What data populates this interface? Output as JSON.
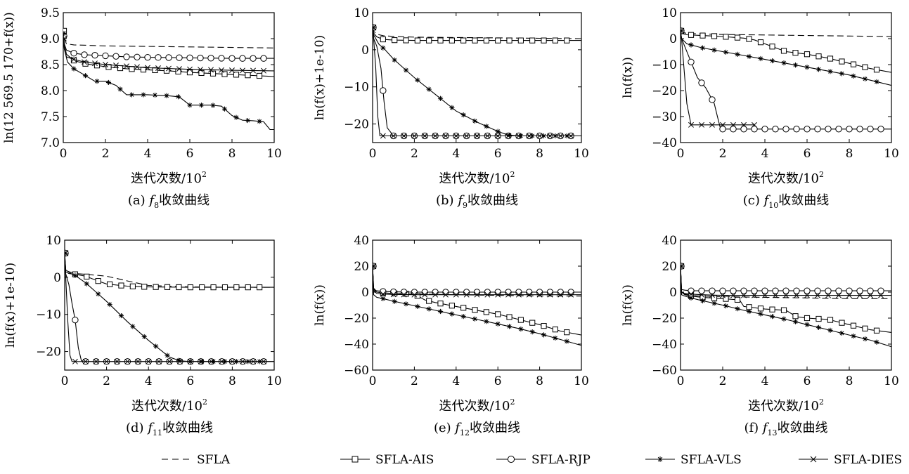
{
  "chart_data": [
    {
      "type": "line",
      "panel": "a",
      "caption_prefix": "(a)",
      "fn_base": "f",
      "fn_sub": "8",
      "caption_suffix": "收敛曲线",
      "xlabel": "迭代次数/10",
      "xlabel_sup": "2",
      "ylabel": "ln(12 569.5 170+f(x))",
      "xlim": [
        0,
        10
      ],
      "ylim": [
        7.0,
        9.5
      ],
      "xticks": [
        "0",
        "2",
        "4",
        "6",
        "8",
        "10"
      ],
      "yticks": [
        "7.0",
        "7.5",
        "8.0",
        "8.5",
        "9.0",
        "9.5"
      ],
      "series": [
        {
          "name": "SFLA",
          "x": [
            0,
            0.05,
            0.15,
            0.5,
            2,
            6,
            10
          ],
          "y": [
            9.2,
            9.0,
            8.9,
            8.88,
            8.86,
            8.84,
            8.82
          ]
        },
        {
          "name": "SFLA-AIS",
          "x": [
            0,
            0.05,
            0.15,
            0.5,
            1,
            2,
            3,
            4,
            5,
            6,
            7,
            8,
            9,
            10
          ],
          "y": [
            9.15,
            8.9,
            8.7,
            8.58,
            8.52,
            8.46,
            8.42,
            8.4,
            8.38,
            8.35,
            8.33,
            8.31,
            8.29,
            8.27
          ]
        },
        {
          "name": "SFLA-RJP",
          "x": [
            0,
            0.05,
            0.15,
            0.5,
            1,
            2,
            3,
            4,
            6,
            8,
            10
          ],
          "y": [
            9.05,
            8.9,
            8.78,
            8.72,
            8.69,
            8.67,
            8.65,
            8.64,
            8.63,
            8.62,
            8.62
          ]
        },
        {
          "name": "SFLA-VLS",
          "x": [
            0,
            0.05,
            0.2,
            0.5,
            1,
            1.5,
            2,
            2.5,
            3,
            4,
            5,
            5.5,
            6,
            7,
            7.5,
            8,
            8.5,
            9,
            9.5,
            9.8,
            10
          ],
          "y": [
            9.1,
            8.8,
            8.55,
            8.42,
            8.3,
            8.18,
            8.18,
            8.1,
            7.92,
            7.92,
            7.9,
            7.88,
            7.72,
            7.72,
            7.7,
            7.52,
            7.43,
            7.42,
            7.4,
            7.25,
            7.25
          ]
        },
        {
          "name": "SFLA-DIES",
          "x": [
            0,
            0.05,
            0.15,
            0.5,
            1,
            2,
            3,
            4,
            6,
            8,
            10
          ],
          "y": [
            9.0,
            8.8,
            8.65,
            8.6,
            8.55,
            8.5,
            8.47,
            8.44,
            8.41,
            8.39,
            8.38
          ]
        }
      ]
    },
    {
      "type": "line",
      "panel": "b",
      "caption_prefix": "(b)",
      "fn_base": "f",
      "fn_sub": "9",
      "caption_suffix": "收敛曲线",
      "xlabel": "迭代次数/10",
      "xlabel_sup": "2",
      "ylabel": "ln(f(x)+1e-10)",
      "xlim": [
        0,
        10
      ],
      "ylim": [
        -25,
        10
      ],
      "xticks": [
        "0",
        "2",
        "4",
        "6",
        "8",
        "10"
      ],
      "yticks": [
        "−20",
        "−10",
        "0",
        "10"
      ],
      "ytick_values": [
        -20,
        -10,
        0,
        10
      ],
      "series": [
        {
          "name": "SFLA",
          "x": [
            0,
            0.05,
            0.2,
            0.5,
            1,
            2,
            4,
            6,
            8,
            10
          ],
          "y": [
            6,
            5,
            4.2,
            3.8,
            3.6,
            3.4,
            3.3,
            3.2,
            3.1,
            3.0
          ]
        },
        {
          "name": "SFLA-AIS",
          "x": [
            0,
            0.05,
            0.2,
            0.5,
            1,
            2,
            4,
            6,
            8,
            10
          ],
          "y": [
            6,
            4.5,
            3.5,
            2.8,
            2.6,
            2.5,
            2.5,
            2.5,
            2.5,
            2.5
          ]
        },
        {
          "name": "SFLA-RJP",
          "x": [
            0,
            0.05,
            0.2,
            0.4,
            0.55,
            0.7,
            1,
            2,
            4,
            6,
            8,
            10
          ],
          "y": [
            6,
            3,
            1,
            -5,
            -14,
            -21,
            -23.2,
            -23.2,
            -23.2,
            -23.2,
            -23.2,
            -23.2
          ]
        },
        {
          "name": "SFLA-VLS",
          "x": [
            0,
            0.05,
            0.3,
            0.6,
            1,
            2,
            3,
            4,
            5,
            6,
            6.5,
            7,
            10
          ],
          "y": [
            6,
            4,
            1.5,
            0,
            -2.5,
            -7.5,
            -12,
            -16.5,
            -19.5,
            -22,
            -23,
            -23.2,
            -23.2
          ]
        },
        {
          "name": "SFLA-DIES",
          "x": [
            0,
            0.05,
            0.15,
            0.25,
            0.35,
            0.6,
            1,
            10
          ],
          "y": [
            6,
            3,
            -5,
            -18,
            -23.2,
            -23.2,
            -23.2,
            -23.2
          ]
        }
      ]
    },
    {
      "type": "line",
      "panel": "c",
      "caption_prefix": "(c)",
      "fn_base": "f",
      "fn_sub": "10",
      "caption_suffix": "收敛曲线",
      "xlabel": "迭代次数/10",
      "xlabel_sup": "2",
      "ylabel": "ln(f(x))",
      "xlim": [
        0,
        10
      ],
      "ylim": [
        -40,
        10
      ],
      "xticks": [
        "0",
        "2",
        "4",
        "6",
        "8",
        "10"
      ],
      "yticks": [
        "−40",
        "−30",
        "−20",
        "−10",
        "0",
        "10"
      ],
      "ytick_values": [
        -40,
        -30,
        -20,
        -10,
        0,
        10
      ],
      "series": [
        {
          "name": "SFLA",
          "x": [
            0,
            0.05,
            0.3,
            1,
            2,
            4,
            6,
            8,
            10
          ],
          "y": [
            3,
            2.5,
            2,
            1.8,
            1.6,
            1.4,
            1.2,
            1.0,
            0.8
          ]
        },
        {
          "name": "SFLA-AIS",
          "x": [
            0,
            0.05,
            0.3,
            1,
            2,
            3,
            3.5,
            4,
            4.5,
            5,
            6,
            7,
            8,
            9,
            10
          ],
          "y": [
            3,
            2,
            1.5,
            1.2,
            0.8,
            0.2,
            -0.5,
            -2,
            -3.5,
            -5,
            -6,
            -7.5,
            -9.5,
            -11.5,
            -13
          ]
        },
        {
          "name": "SFLA-RJP",
          "x": [
            0,
            0.05,
            0.2,
            0.4,
            0.6,
            0.8,
            1,
            1.2,
            1.4,
            1.6,
            1.75,
            1.9,
            2.5,
            4,
            6,
            8,
            10
          ],
          "y": [
            3,
            0,
            -3,
            -7,
            -11,
            -15,
            -17,
            -19,
            -22,
            -25,
            -30,
            -34.8,
            -34.8,
            -34.8,
            -34.8,
            -34.8,
            -34.8
          ]
        },
        {
          "name": "SFLA-VLS",
          "x": [
            0,
            0.05,
            0.3,
            1,
            2,
            3,
            4,
            5,
            6,
            7,
            8,
            9,
            10
          ],
          "y": [
            3,
            0,
            -2,
            -3.5,
            -5,
            -6.5,
            -8,
            -9.5,
            -11,
            -12.5,
            -14,
            -16,
            -18
          ]
        },
        {
          "name": "SFLA-DIES",
          "x": [
            0,
            0.05,
            0.15,
            0.3,
            0.5,
            1,
            2,
            3,
            3.5
          ],
          "y": [
            3,
            0,
            -10,
            -25,
            -33.2,
            -33.2,
            -33.2,
            -33.2,
            -33.2
          ]
        }
      ]
    },
    {
      "type": "line",
      "panel": "d",
      "caption_prefix": "(d)",
      "fn_base": "f",
      "fn_sub": "11",
      "caption_suffix": "收敛曲线",
      "xlabel": "迭代次数/10",
      "xlabel_sup": "2",
      "ylabel": "ln(f(x)+1e-10)",
      "xlim": [
        0,
        10
      ],
      "ylim": [
        -25,
        10
      ],
      "xticks": [
        "0",
        "2",
        "4",
        "6",
        "8",
        "10"
      ],
      "yticks": [
        "−20",
        "−10",
        "0",
        "10"
      ],
      "ytick_values": [
        -20,
        -10,
        0,
        10
      ],
      "series": [
        {
          "name": "SFLA",
          "x": [
            0,
            0.05,
            0.2,
            0.5,
            1,
            2,
            3,
            4,
            6,
            8,
            10
          ],
          "y": [
            6.5,
            2,
            1.5,
            1,
            0.8,
            0.3,
            -1,
            -2.2,
            -2.6,
            -2.7,
            -2.7
          ]
        },
        {
          "name": "SFLA-AIS",
          "x": [
            0,
            0.05,
            0.2,
            0.5,
            1,
            1.5,
            2,
            3,
            4,
            6,
            8,
            10
          ],
          "y": [
            6.5,
            1.5,
            1,
            0.8,
            0.3,
            -0.8,
            -1.8,
            -2.4,
            -2.6,
            -2.7,
            -2.7,
            -2.7
          ]
        },
        {
          "name": "SFLA-RJP",
          "x": [
            0,
            0.05,
            0.2,
            0.35,
            0.5,
            0.65,
            0.8,
            1,
            2,
            10
          ],
          "y": [
            6.5,
            1,
            -2,
            -7,
            -11.5,
            -19,
            -22.5,
            -22.7,
            -22.7,
            -22.7
          ]
        },
        {
          "name": "SFLA-VLS",
          "x": [
            0,
            0.05,
            0.3,
            0.5,
            1,
            1.5,
            2,
            3,
            4,
            5,
            5.5,
            6,
            10
          ],
          "y": [
            6.5,
            2,
            1,
            0.5,
            -1.5,
            -4,
            -6.5,
            -12,
            -17,
            -21.5,
            -22.5,
            -22.7,
            -22.7
          ]
        },
        {
          "name": "SFLA-DIES",
          "x": [
            0,
            0.05,
            0.15,
            0.25,
            0.35,
            1,
            10
          ],
          "y": [
            6.5,
            0,
            -12,
            -21,
            -22.7,
            -22.7,
            -22.7
          ]
        }
      ]
    },
    {
      "type": "line",
      "panel": "e",
      "caption_prefix": "(e)",
      "fn_base": "f",
      "fn_sub": "12",
      "caption_suffix": "收敛曲线",
      "xlabel": "迭代次数/10",
      "xlabel_sup": "2",
      "ylabel": "ln(f(x))",
      "xlim": [
        0,
        10
      ],
      "ylim": [
        -60,
        40
      ],
      "xticks": [
        "0",
        "2",
        "4",
        "6",
        "8",
        "10"
      ],
      "yticks": [
        "−60",
        "−40",
        "−20",
        "0",
        "20",
        "40"
      ],
      "ytick_values": [
        -60,
        -40,
        -20,
        0,
        20,
        40
      ],
      "series": [
        {
          "name": "SFLA",
          "x": [
            0,
            0.05,
            0.2,
            0.5,
            1,
            2,
            4,
            6,
            8,
            10
          ],
          "y": [
            20,
            3,
            0.5,
            -0.5,
            -1,
            -1.5,
            -2,
            -2.5,
            -3,
            -3
          ]
        },
        {
          "name": "SFLA-AIS",
          "x": [
            0,
            0.05,
            0.2,
            0.5,
            1,
            2,
            2.5,
            3,
            4,
            5,
            6,
            7,
            8,
            9,
            10
          ],
          "y": [
            20,
            2,
            0,
            -0.5,
            -1,
            -1.5,
            -6,
            -8,
            -11,
            -14,
            -17,
            -21,
            -25,
            -30,
            -33
          ]
        },
        {
          "name": "SFLA-RJP",
          "x": [
            0,
            0.05,
            0.2,
            0.5,
            1,
            2,
            4,
            6,
            8,
            10
          ],
          "y": [
            20,
            2,
            1,
            0.5,
            0.2,
            0,
            0,
            0,
            0,
            0
          ]
        },
        {
          "name": "SFLA-VLS",
          "x": [
            0,
            0.05,
            0.2,
            0.5,
            1,
            2,
            3,
            4,
            5,
            6,
            7,
            8,
            9,
            10
          ],
          "y": [
            20,
            -2,
            -4,
            -5,
            -7,
            -10.5,
            -14,
            -17.5,
            -21,
            -24.5,
            -28,
            -32,
            -36.5,
            -41
          ]
        },
        {
          "name": "SFLA-DIES",
          "x": [
            0,
            0.05,
            0.2,
            0.5,
            1,
            2,
            4,
            6,
            8,
            10
          ],
          "y": [
            20,
            1,
            -1,
            -1.5,
            -1.8,
            -2,
            -2,
            -2,
            -2,
            -2
          ]
        }
      ]
    },
    {
      "type": "line",
      "panel": "f",
      "caption_prefix": "(f)",
      "fn_base": "f",
      "fn_sub": "13",
      "caption_suffix": "收敛曲线",
      "xlabel": "迭代次数/10",
      "xlabel_sup": "2",
      "ylabel": "ln(f(x))",
      "xlim": [
        0,
        10
      ],
      "ylim": [
        -60,
        40
      ],
      "xticks": [
        "0",
        "2",
        "4",
        "6",
        "8",
        "10"
      ],
      "yticks": [
        "−60",
        "−40",
        "−20",
        "0",
        "20",
        "40"
      ],
      "ytick_values": [
        -60,
        -40,
        -20,
        0,
        20,
        40
      ],
      "series": [
        {
          "name": "SFLA",
          "x": [
            0,
            0.05,
            0.2,
            0.5,
            1,
            2,
            4,
            6,
            8,
            10
          ],
          "y": [
            20,
            0,
            -1.5,
            -2.5,
            -3,
            -3.5,
            -4,
            -4.5,
            -5,
            -5
          ]
        },
        {
          "name": "SFLA-AIS",
          "x": [
            0,
            0.05,
            0.2,
            0.5,
            1,
            2,
            2.8,
            3,
            4,
            5,
            5.5,
            6,
            7,
            8,
            9,
            10
          ],
          "y": [
            20,
            0,
            -2,
            -3,
            -4,
            -5,
            -6,
            -11,
            -13,
            -14,
            -19,
            -20,
            -21,
            -25,
            -29,
            -31
          ]
        },
        {
          "name": "SFLA-RJP",
          "x": [
            0,
            0.05,
            0.2,
            0.5,
            1,
            2,
            4,
            6,
            8,
            10
          ],
          "y": [
            20,
            2,
            1.5,
            1,
            1,
            1,
            1,
            1,
            1,
            1
          ]
        },
        {
          "name": "SFLA-VLS",
          "x": [
            0,
            0.05,
            0.2,
            0.5,
            1,
            2,
            3,
            4,
            5,
            6,
            7,
            8,
            9,
            10
          ],
          "y": [
            20,
            -2,
            -3,
            -4.5,
            -6.5,
            -10,
            -14,
            -17.5,
            -21,
            -25,
            -29,
            -33,
            -37,
            -42
          ]
        },
        {
          "name": "SFLA-DIES",
          "x": [
            0,
            0.05,
            0.2,
            0.5,
            1,
            2,
            3,
            4,
            6,
            8,
            10
          ],
          "y": [
            20,
            0,
            -1,
            -1.5,
            -2,
            -2.5,
            -2.5,
            -2.5,
            -2.5,
            -2.5,
            -2.5
          ]
        }
      ]
    }
  ],
  "legend": {
    "placement": "bottom-center",
    "items": [
      {
        "name": "SFLA",
        "style": "dashed",
        "marker": "none"
      },
      {
        "name": "SFLA-AIS",
        "style": "solid",
        "marker": "square"
      },
      {
        "name": "SFLA-RJP",
        "style": "solid",
        "marker": "circle"
      },
      {
        "name": "SFLA-VLS",
        "style": "solid",
        "marker": "star"
      },
      {
        "name": "SFLA-DIES",
        "style": "solid",
        "marker": "cross"
      }
    ]
  },
  "colors": {
    "line": "#000000",
    "background": "#ffffff"
  }
}
